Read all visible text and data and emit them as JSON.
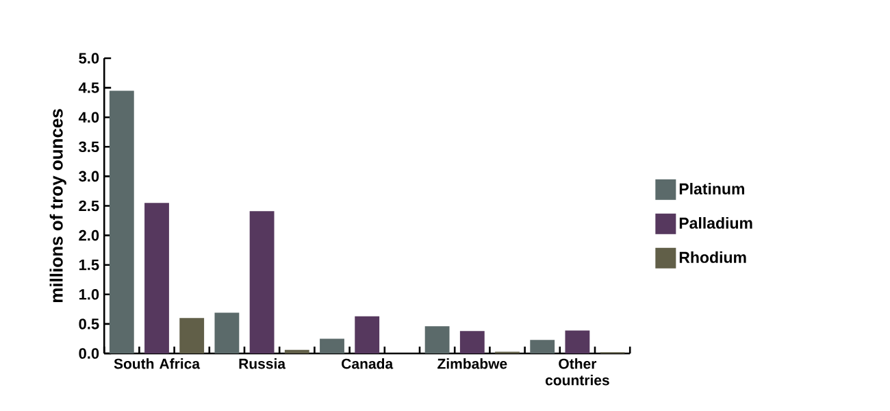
{
  "chart_data": {
    "type": "bar",
    "ylabel": "millions of troy ounces",
    "categories": [
      "South Africa",
      "Russia",
      "Canada",
      "Zimbabwe",
      "Other countries"
    ],
    "series": [
      {
        "name": "Platinum",
        "color": "#5b6a6a",
        "values": [
          4.45,
          0.69,
          0.25,
          0.46,
          0.23
        ]
      },
      {
        "name": "Palladium",
        "color": "#56385e",
        "values": [
          2.55,
          2.41,
          0.63,
          0.38,
          0.39
        ]
      },
      {
        "name": "Rhodium",
        "color": "#615f48",
        "values": [
          0.6,
          0.06,
          0,
          0.03,
          0.02
        ]
      }
    ],
    "ylim": [
      0,
      5
    ],
    "yticks": [
      {
        "value": 0,
        "label": "0.0"
      },
      {
        "value": 0.5,
        "label": "0.5"
      },
      {
        "value": 1,
        "label": "1.0"
      },
      {
        "value": 1.5,
        "label": "1.5"
      },
      {
        "value": 2,
        "label": "2.0"
      },
      {
        "value": 2.5,
        "label": "2.5"
      },
      {
        "value": 3,
        "label": "3.0"
      },
      {
        "value": 3.5,
        "label": "3.5"
      },
      {
        "value": 4,
        "label": "4.0"
      },
      {
        "value": 4.5,
        "label": "4.5"
      },
      {
        "value": 5,
        "label": "5.0"
      }
    ],
    "legend": "right",
    "grid": false
  }
}
